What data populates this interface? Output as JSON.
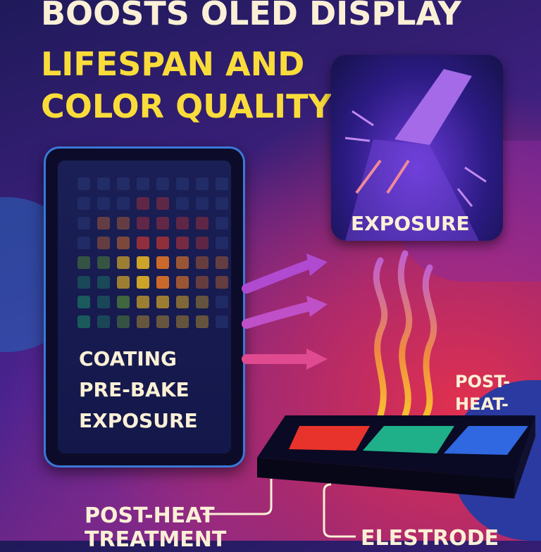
{
  "title": {
    "line1": "BOOSTS OLED DISPLAY",
    "line2": "LIFESPAN AND",
    "line3": "COLOR QUALITY"
  },
  "tablet": {
    "lines": [
      "COATING",
      "PRE-BAKE",
      "EXPOSURE"
    ],
    "pixel_colors": [
      "#e23a2e",
      "#f07a22",
      "#f4c020",
      "#6dbb2a",
      "#1f9a6a",
      "#2a3a7a"
    ]
  },
  "exposure": {
    "label": "EXPOSURE"
  },
  "heat_plate": {
    "side_label_1": "POST-",
    "side_label_2": "HEAT-",
    "strip_colors": [
      "#e8332c",
      "#1fb08a",
      "#2f68e0"
    ]
  },
  "callouts": {
    "post_heat_1": "POST-HEAT",
    "post_heat_2": "TREATMENT",
    "electrode": "ELESTRODE"
  },
  "colors": {
    "title_cream": "#fbf0d6",
    "title_yellow": "#f9dc3a"
  }
}
